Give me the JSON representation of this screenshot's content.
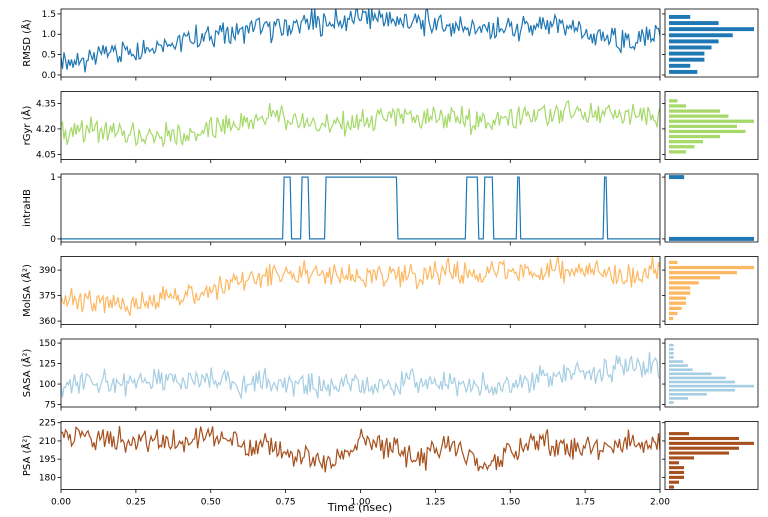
{
  "chart_data": {
    "type": "line",
    "xlabel": "Time (nsec)",
    "xlim": [
      0,
      2.0
    ],
    "xticks": [
      0.0,
      0.25,
      0.5,
      0.75,
      1.0,
      1.25,
      1.5,
      1.75,
      2.0
    ],
    "xtick_labels": [
      "0.00",
      "0.25",
      "0.50",
      "0.75",
      "1.00",
      "1.25",
      "1.50",
      "1.75",
      "2.00"
    ],
    "panels": [
      {
        "ylabel": "RMSD (Å)",
        "color": "#1f77b4",
        "ylim": [
          -0.05,
          1.62
        ],
        "yticks": [
          0.0,
          0.5,
          1.0,
          1.5
        ],
        "ytick_labels": [
          "0.0",
          "0.5",
          "1.0",
          "1.5"
        ],
        "series": {
          "x": [
            0.0,
            0.1,
            0.2,
            0.3,
            0.4,
            0.5,
            0.6,
            0.7,
            0.8,
            0.9,
            1.0,
            1.1,
            1.2,
            1.3,
            1.4,
            1.5,
            1.6,
            1.7,
            1.8,
            1.9,
            2.0
          ],
          "y": [
            0.25,
            0.45,
            0.6,
            0.75,
            0.85,
            0.95,
            1.05,
            1.15,
            1.25,
            1.3,
            1.4,
            1.35,
            1.3,
            1.2,
            1.15,
            1.1,
            1.15,
            1.2,
            0.9,
            0.8,
            1.05
          ]
        },
        "histogram": {
          "bins": [
            0.0,
            0.15,
            0.3,
            0.45,
            0.6,
            0.75,
            0.9,
            1.05,
            1.2,
            1.35,
            1.5
          ],
          "counts": [
            4,
            3,
            5,
            5,
            6,
            7,
            9,
            12,
            7,
            3
          ]
        }
      },
      {
        "ylabel": "rGyr (Å)",
        "color": "#a6d96a",
        "ylim": [
          4.02,
          4.42
        ],
        "yticks": [
          4.05,
          4.2,
          4.35
        ],
        "ytick_labels": [
          "4.05",
          "4.20",
          "4.35"
        ],
        "series": {
          "x": [
            0.0,
            0.1,
            0.2,
            0.3,
            0.4,
            0.5,
            0.6,
            0.7,
            0.8,
            0.9,
            1.0,
            1.1,
            1.2,
            1.3,
            1.4,
            1.5,
            1.6,
            1.7,
            1.8,
            1.9,
            2.0
          ],
          "y": [
            4.18,
            4.2,
            4.17,
            4.15,
            4.16,
            4.2,
            4.23,
            4.27,
            4.25,
            4.22,
            4.24,
            4.26,
            4.25,
            4.27,
            4.24,
            4.25,
            4.28,
            4.3,
            4.28,
            4.27,
            4.26
          ]
        },
        "histogram": {
          "bins": [
            4.05,
            4.08,
            4.11,
            4.14,
            4.17,
            4.2,
            4.23,
            4.26,
            4.29,
            4.32,
            4.35,
            4.38
          ],
          "counts": [
            2,
            3,
            4,
            6,
            9,
            8,
            10,
            7,
            6,
            2,
            1
          ]
        }
      },
      {
        "ylabel": "intraHB",
        "color": "#1f77b4",
        "ylim": [
          -0.05,
          1.05
        ],
        "yticks": [
          0,
          1
        ],
        "ytick_labels": [
          "0",
          "1"
        ],
        "series": {
          "x": [
            0.0,
            0.74,
            0.745,
            0.765,
            0.77,
            0.8,
            0.805,
            0.825,
            0.83,
            0.88,
            0.885,
            0.99,
            1.0,
            1.12,
            1.125,
            1.35,
            1.355,
            1.39,
            1.395,
            1.41,
            1.415,
            1.44,
            1.445,
            1.52,
            1.525,
            1.53,
            1.535,
            1.81,
            1.815,
            1.82,
            1.825,
            2.0
          ],
          "y": [
            0,
            0,
            1,
            1,
            0,
            0,
            1,
            1,
            0,
            0,
            1,
            1,
            1,
            1,
            0,
            0,
            1,
            1,
            0,
            0,
            1,
            1,
            0,
            0,
            1,
            1,
            0,
            0,
            1,
            1,
            0,
            0
          ]
        },
        "histogram": {
          "bins": [
            -0.05,
            0.05,
            0.95,
            1.05
          ],
          "counts": [
            28,
            0,
            5
          ]
        }
      },
      {
        "ylabel": "MolSA (Å²)",
        "color": "#fdb863",
        "ylim": [
          358,
          398
        ],
        "yticks": [
          360,
          375,
          390
        ],
        "ytick_labels": [
          "360",
          "375",
          "390"
        ],
        "series": {
          "x": [
            0.0,
            0.1,
            0.2,
            0.3,
            0.4,
            0.5,
            0.6,
            0.7,
            0.8,
            0.9,
            1.0,
            1.1,
            1.2,
            1.3,
            1.4,
            1.5,
            1.6,
            1.7,
            1.8,
            1.9,
            2.0
          ],
          "y": [
            372,
            370,
            368,
            372,
            374,
            379,
            383,
            387,
            388,
            386,
            385,
            388,
            386,
            389,
            387,
            388,
            389,
            390,
            388,
            386,
            391
          ]
        },
        "histogram": {
          "bins": [
            360,
            363,
            366,
            369,
            372,
            375,
            378,
            381,
            384,
            387,
            390,
            393,
            396
          ],
          "counts": [
            1,
            2,
            3,
            4,
            4,
            5,
            5,
            7,
            12,
            16,
            20,
            2
          ]
        }
      },
      {
        "ylabel": "SASA (Å²)",
        "color": "#a6cee3",
        "ylim": [
          72,
          155
        ],
        "yticks": [
          75,
          100,
          125,
          150
        ],
        "ytick_labels": [
          "75",
          "100",
          "125",
          "150"
        ],
        "series": {
          "x": [
            0.0,
            0.1,
            0.2,
            0.3,
            0.4,
            0.5,
            0.6,
            0.7,
            0.8,
            0.9,
            1.0,
            1.1,
            1.2,
            1.3,
            1.4,
            1.5,
            1.6,
            1.7,
            1.8,
            1.9,
            2.0
          ],
          "y": [
            95,
            102,
            100,
            104,
            100,
            103,
            98,
            104,
            97,
            99,
            95,
            100,
            102,
            98,
            97,
            95,
            108,
            112,
            115,
            125,
            120
          ]
        },
        "histogram": {
          "bins": [
            75,
            80,
            85,
            90,
            95,
            100,
            105,
            110,
            115,
            120,
            125,
            130,
            135,
            140,
            145,
            150
          ],
          "counts": [
            1,
            4,
            8,
            14,
            18,
            14,
            12,
            9,
            5,
            4,
            3,
            1,
            1,
            1,
            1
          ]
        }
      },
      {
        "ylabel": "PSA (Å²)",
        "color": "#a6501e",
        "ylim": [
          170,
          226
        ],
        "yticks": [
          180,
          195,
          210,
          225
        ],
        "ytick_labels": [
          "180",
          "195",
          "210",
          "225"
        ],
        "series": {
          "x": [
            0.0,
            0.1,
            0.2,
            0.3,
            0.4,
            0.5,
            0.6,
            0.7,
            0.8,
            0.9,
            1.0,
            1.1,
            1.2,
            1.3,
            1.4,
            1.5,
            1.6,
            1.7,
            1.8,
            1.9,
            2.0
          ],
          "y": [
            213,
            212,
            211,
            209,
            210,
            212,
            208,
            205,
            195,
            192,
            208,
            205,
            194,
            209,
            190,
            200,
            211,
            206,
            204,
            210,
            208
          ]
        },
        "histogram": {
          "bins": [
            170,
            174,
            178,
            182,
            186,
            190,
            194,
            198,
            202,
            206,
            210,
            214,
            218
          ],
          "counts": [
            1,
            2,
            3,
            3,
            3,
            2,
            5,
            12,
            14,
            17,
            14,
            4
          ]
        }
      }
    ]
  }
}
